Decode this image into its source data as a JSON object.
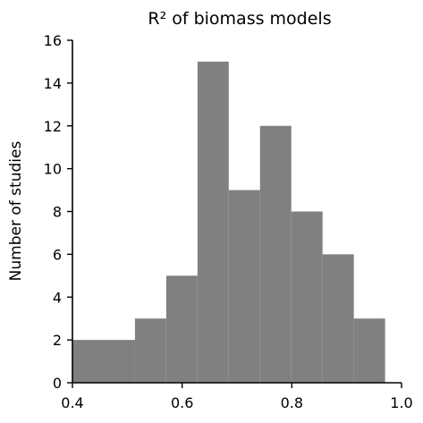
{
  "chart_data": {
    "type": "bar",
    "title": "R² of biomass models",
    "xlabel": "",
    "ylabel": "Number of studies",
    "bins": [
      {
        "start": 0.4,
        "end": 0.457,
        "count": 2
      },
      {
        "start": 0.457,
        "end": 0.514,
        "count": 2
      },
      {
        "start": 0.514,
        "end": 0.571,
        "count": 3
      },
      {
        "start": 0.571,
        "end": 0.628,
        "count": 5
      },
      {
        "start": 0.628,
        "end": 0.685,
        "count": 15
      },
      {
        "start": 0.685,
        "end": 0.742,
        "count": 9
      },
      {
        "start": 0.742,
        "end": 0.799,
        "count": 12
      },
      {
        "start": 0.799,
        "end": 0.856,
        "count": 8
      },
      {
        "start": 0.856,
        "end": 0.913,
        "count": 6
      },
      {
        "start": 0.913,
        "end": 0.97,
        "count": 3
      }
    ],
    "xlim": [
      0.4,
      1.0
    ],
    "ylim": [
      0,
      16
    ],
    "x_ticks": [
      {
        "value": 0.4,
        "label": "0.4"
      },
      {
        "value": 0.6,
        "label": "0.6"
      },
      {
        "value": 0.8,
        "label": "0.8"
      },
      {
        "value": 1.0,
        "label": "1.0"
      }
    ],
    "y_ticks": [
      {
        "value": 0,
        "label": "0"
      },
      {
        "value": 2,
        "label": "2"
      },
      {
        "value": 4,
        "label": "4"
      },
      {
        "value": 6,
        "label": "6"
      },
      {
        "value": 8,
        "label": "8"
      },
      {
        "value": 10,
        "label": "10"
      },
      {
        "value": 12,
        "label": "12"
      },
      {
        "value": 14,
        "label": "14"
      },
      {
        "value": 16,
        "label": "16"
      }
    ],
    "bar_color": "#808080",
    "grid": false,
    "legend": "none"
  }
}
